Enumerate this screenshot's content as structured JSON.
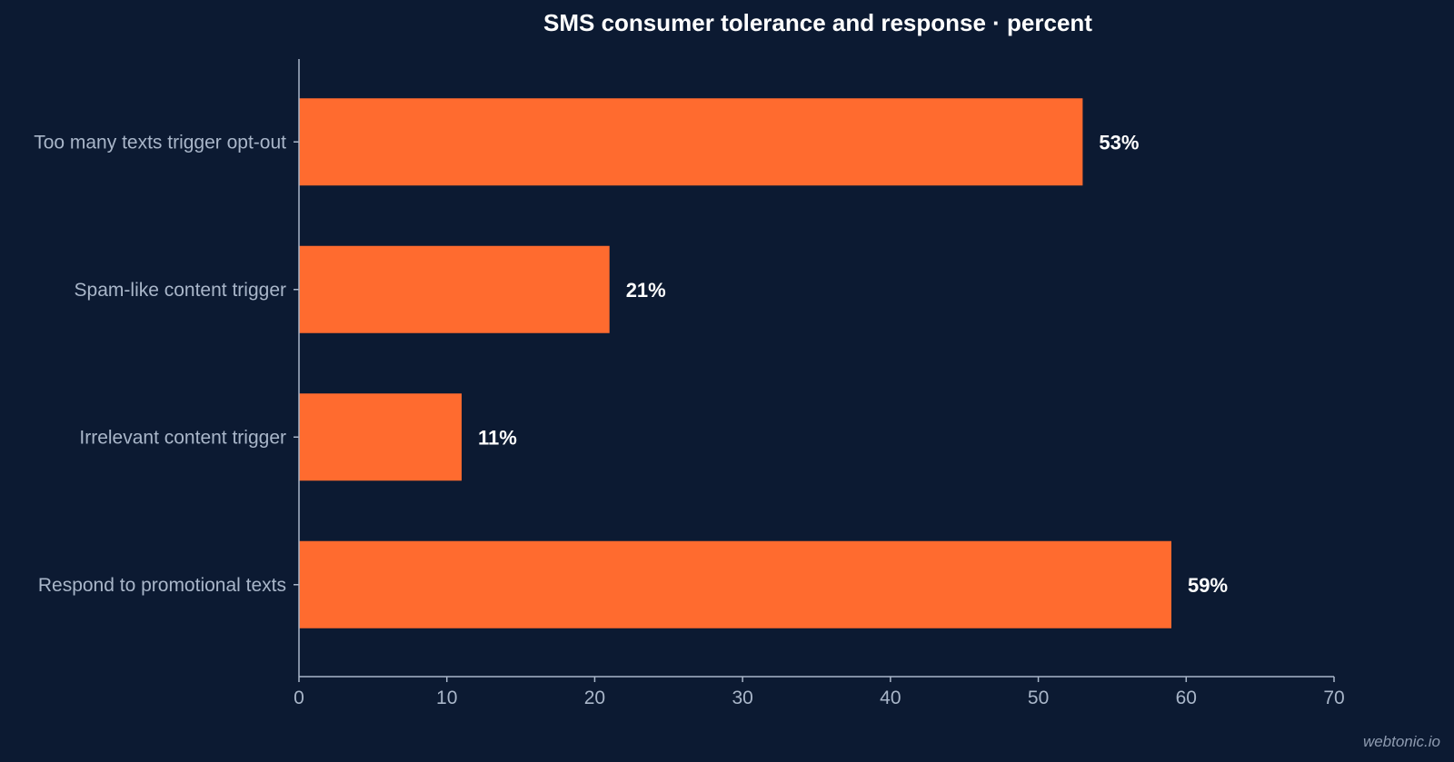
{
  "chart_data": {
    "type": "bar",
    "orientation": "horizontal",
    "title": "SMS consumer tolerance and response · percent",
    "categories": [
      "Too many texts trigger opt-out",
      "Spam-like content trigger",
      "Irrelevant content trigger",
      "Respond to promotional texts"
    ],
    "values": [
      53,
      21,
      11,
      59
    ],
    "data_labels": [
      "53%",
      "21%",
      "11%",
      "59%"
    ],
    "xlim": [
      0,
      70
    ],
    "xticks": [
      0,
      10,
      20,
      30,
      40,
      50,
      60,
      70
    ],
    "grid": false,
    "legend": "none",
    "bar_color": "#ff6b2f"
  },
  "watermark": "webtonic.io",
  "colors": {
    "background": "#0c1a32",
    "bar": "#ff6b2f",
    "axis": "#a9b6c9",
    "text": "#ffffff"
  }
}
